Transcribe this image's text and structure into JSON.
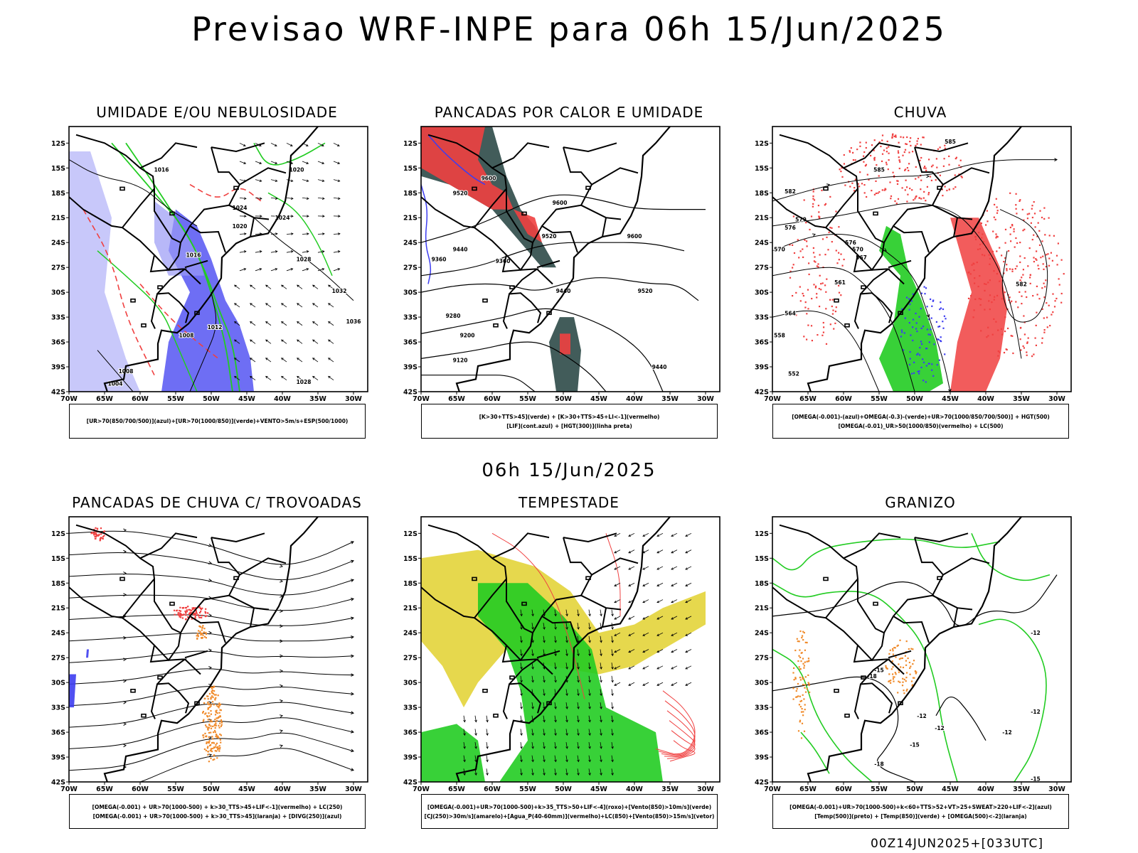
{
  "title": "Previsao WRF-INPE  para 06h 15/Jun/2025",
  "mid_time": "06h 15/Jun/2025",
  "footer": "00Z14JUN2025+[033UTC]",
  "colors": {
    "blue": "#3d3df0",
    "green": "#22cc22",
    "red": "#f04040",
    "darkteal": "#2e4a48",
    "yellow": "#e3d43a",
    "orange": "#f08a2a",
    "black": "#000000"
  },
  "chart_data": [
    {
      "type": "heatmap",
      "title": "UMIDADE E/OU NEBULOSIDADE",
      "x_ticks": [
        "70W",
        "65W",
        "60W",
        "55W",
        "50W",
        "45W",
        "40W",
        "35W",
        "30W"
      ],
      "y_ticks": [
        "12S",
        "15S",
        "18S",
        "21S",
        "24S",
        "27S",
        "30S",
        "33S",
        "36S",
        "39S",
        "42S"
      ],
      "legend": [
        "[UR>70(850/700/500)](azul)+[UR>70(1000/850)](verde)+VENTO>5m/s+ESP(500/1000)"
      ],
      "contour_labels": [
        {
          "text": "1016",
          "lon": -57,
          "lat": -15.2
        },
        {
          "text": "1020",
          "lon": -38,
          "lat": -15.2
        },
        {
          "text": "1024",
          "lon": -46,
          "lat": -19.8
        },
        {
          "text": "1020",
          "lon": -46,
          "lat": -22
        },
        {
          "text": "1024",
          "lon": -40,
          "lat": -21
        },
        {
          "text": "1016",
          "lon": -52.5,
          "lat": -25.5
        },
        {
          "text": "1028",
          "lon": -37,
          "lat": -26
        },
        {
          "text": "1032",
          "lon": -32,
          "lat": -29.8
        },
        {
          "text": "1036",
          "lon": -30,
          "lat": -33.5
        },
        {
          "text": "1012",
          "lon": -49.5,
          "lat": -34.2
        },
        {
          "text": "1008",
          "lon": -53.5,
          "lat": -35.2
        },
        {
          "text": "1008",
          "lon": -62,
          "lat": -39.5
        },
        {
          "text": "1004",
          "lon": -63.5,
          "lat": -41
        },
        {
          "text": "1028",
          "lon": -37,
          "lat": -40.8
        }
      ]
    },
    {
      "type": "heatmap",
      "title": "PANCADAS POR CALOR E UMIDADE",
      "x_ticks": [
        "70W",
        "65W",
        "60W",
        "55W",
        "50W",
        "45W",
        "40W",
        "35W",
        "30W"
      ],
      "y_ticks": [
        "12S",
        "15S",
        "18S",
        "21S",
        "24S",
        "27S",
        "30S",
        "33S",
        "36S",
        "39S",
        "42S"
      ],
      "legend": [
        "[K>30+TTS>45](verde) + [K>30+TTS>45+LI<-1](vermelho)",
        "[LIF](cont.azul) + [HGT(300)](linha preta)"
      ],
      "contour_labels": [
        {
          "text": "9600",
          "lon": -60.5,
          "lat": -16.2
        },
        {
          "text": "9520",
          "lon": -64.5,
          "lat": -18
        },
        {
          "text": "9600",
          "lon": -50.5,
          "lat": -19.2
        },
        {
          "text": "9520",
          "lon": -52,
          "lat": -23.2
        },
        {
          "text": "9600",
          "lon": -40,
          "lat": -23.2
        },
        {
          "text": "9440",
          "lon": -64.5,
          "lat": -24.8
        },
        {
          "text": "9360",
          "lon": -67.5,
          "lat": -26
        },
        {
          "text": "9360",
          "lon": -58.5,
          "lat": -26.2
        },
        {
          "text": "9440",
          "lon": -50,
          "lat": -29.8
        },
        {
          "text": "9520",
          "lon": -38.5,
          "lat": -29.8
        },
        {
          "text": "9280",
          "lon": -65.5,
          "lat": -32.8
        },
        {
          "text": "9200",
          "lon": -63.5,
          "lat": -35.2
        },
        {
          "text": "9120",
          "lon": -64.5,
          "lat": -38.2
        },
        {
          "text": "9440",
          "lon": -36.5,
          "lat": -39
        }
      ]
    },
    {
      "type": "heatmap",
      "title": "CHUVA",
      "x_ticks": [
        "70W",
        "65W",
        "60W",
        "55W",
        "50W",
        "45W",
        "40W",
        "35W",
        "30W"
      ],
      "y_ticks": [
        "12S",
        "15S",
        "18S",
        "21S",
        "24S",
        "27S",
        "30S",
        "33S",
        "36S",
        "39S",
        "42S"
      ],
      "legend": [
        "[OMEGA(-0.001)-(azul)+OMEGA(-0.3)-(verde)+UR>70(1000/850/700/500)] + HGT(500)",
        "[OMEGA(-0.01)_UR>50(1000/850)(vermelho) + LC(500)"
      ],
      "contour_labels": [
        {
          "text": "585",
          "lon": -45,
          "lat": -11.8
        },
        {
          "text": "585",
          "lon": -55,
          "lat": -15.2
        },
        {
          "text": "582",
          "lon": -67.5,
          "lat": -17.8
        },
        {
          "text": "579",
          "lon": -66,
          "lat": -21.2
        },
        {
          "text": "576",
          "lon": -67.5,
          "lat": -22.2
        },
        {
          "text": "576",
          "lon": -59,
          "lat": -24
        },
        {
          "text": "570",
          "lon": -58,
          "lat": -24.8
        },
        {
          "text": "567",
          "lon": -57.5,
          "lat": -25.8
        },
        {
          "text": "561",
          "lon": -60.5,
          "lat": -28.8
        },
        {
          "text": "564",
          "lon": -67.5,
          "lat": -32.5
        },
        {
          "text": "558",
          "lon": -69,
          "lat": -35.2
        },
        {
          "text": "552",
          "lon": -67,
          "lat": -39.8
        },
        {
          "text": "570",
          "lon": -69,
          "lat": -24.8
        },
        {
          "text": "582",
          "lon": -35,
          "lat": -29
        }
      ]
    },
    {
      "type": "heatmap",
      "title": "PANCADAS DE CHUVA C/ TROVOADAS",
      "x_ticks": [
        "70W",
        "65W",
        "60W",
        "55W",
        "50W",
        "45W",
        "40W",
        "35W",
        "30W"
      ],
      "y_ticks": [
        "12S",
        "15S",
        "18S",
        "21S",
        "24S",
        "27S",
        "30S",
        "33S",
        "36S",
        "39S",
        "42S"
      ],
      "legend": [
        "[OMEGA(-0.001) + UR>70(1000-500) + k>30_TTS>45+LIF<-1](vermelho) + LC(250)",
        "[OMEGA(-0.001) + UR>70(1000-500) + k>30_TTS>45](laranja) + [DIVG(250)](azul)"
      ],
      "contour_labels": []
    },
    {
      "type": "heatmap",
      "title": "TEMPESTADE",
      "x_ticks": [
        "70W",
        "65W",
        "60W",
        "55W",
        "50W",
        "45W",
        "40W",
        "35W",
        "30W"
      ],
      "y_ticks": [
        "12S",
        "15S",
        "18S",
        "21S",
        "24S",
        "27S",
        "30S",
        "33S",
        "36S",
        "39S",
        "42S"
      ],
      "legend": [
        "[OMEGA(-0.001)+UR>70(1000-500)+k>35_TTS>50+LIF<-4](roxo)+[Vento(850)>10m/s](verde)",
        "[CJ(250)>30m/s](amarelo)+[Agua_P(40-60mm)](vermelho)+LC(850)+[Vento(850)>15m/s](vetor)"
      ],
      "contour_labels": []
    },
    {
      "type": "heatmap",
      "title": "GRANIZO",
      "x_ticks": [
        "70W",
        "65W",
        "60W",
        "55W",
        "50W",
        "45W",
        "40W",
        "35W",
        "30W"
      ],
      "y_ticks": [
        "12S",
        "15S",
        "18S",
        "21S",
        "24S",
        "27S",
        "30S",
        "33S",
        "36S",
        "39S",
        "42S"
      ],
      "legend": [
        "[OMEGA(-0.001)+UR>70(1000-500)+k<60+TTS>52+VT>25+SWEAT>220+LIF<-2](azul)",
        "[Temp(500)](preto) + [Temp(850)](verde) + [OMEGA(500)<-2](laranja)"
      ],
      "contour_labels": [
        {
          "text": "-12",
          "lon": -33,
          "lat": -24
        },
        {
          "text": "-15",
          "lon": -55,
          "lat": -28.5
        },
        {
          "text": "-18",
          "lon": -56,
          "lat": -29.2
        },
        {
          "text": "-12",
          "lon": -49,
          "lat": -34
        },
        {
          "text": "-12",
          "lon": -46.5,
          "lat": -35.5
        },
        {
          "text": "-12",
          "lon": -33,
          "lat": -33.5
        },
        {
          "text": "-12",
          "lon": -37,
          "lat": -36
        },
        {
          "text": "-15",
          "lon": -50,
          "lat": -37.5
        },
        {
          "text": "-18",
          "lon": -55,
          "lat": -39.8
        },
        {
          "text": "-15",
          "lon": -33,
          "lat": -41.6
        }
      ]
    }
  ]
}
